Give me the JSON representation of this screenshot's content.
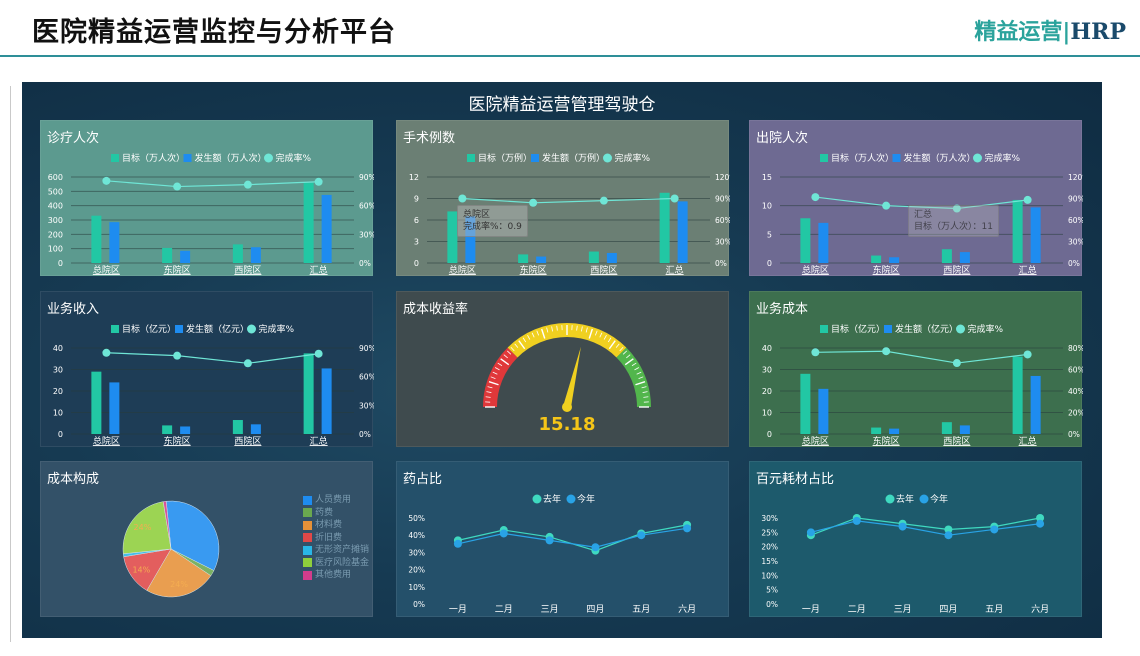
{
  "header": {
    "title": "医院精益运营监控与分析平台",
    "brand_main": "精益运营",
    "brand_sep": "|",
    "brand_hrp": "HRP"
  },
  "dashboard_title": "医院精益运营管理驾驶仓",
  "colors": {
    "target_bar": "#22c7a4",
    "actual_bar": "#1e8cf0",
    "rate_line": "#6fe6d6",
    "last_year": "#3fd9c0",
    "this_year": "#29a3e6"
  },
  "panels": {
    "visits": {
      "title": "诊疗人次",
      "legend": [
        "目标（万人次）",
        "发生额（万人次）",
        "完成率%"
      ]
    },
    "surgery": {
      "title": "手术例数",
      "legend": [
        "目标（万例）",
        "发生额（万例）",
        "完成率%"
      ],
      "tooltip": [
        "总院区",
        "完成率%：0.9"
      ]
    },
    "discharge": {
      "title": "出院人次",
      "legend": [
        "目标（万人次）",
        "发生额（万人次）",
        "完成率%"
      ],
      "tooltip": [
        "汇总",
        "目标（万人次）：11"
      ]
    },
    "revenue": {
      "title": "业务收入",
      "legend": [
        "目标（亿元）",
        "发生额（亿元）",
        "完成率%"
      ]
    },
    "cost_ratio": {
      "title": "成本收益率",
      "gauge_value": 15.18,
      "gauge_label": "15.18"
    },
    "biz_cost": {
      "title": "业务成本",
      "legend": [
        "目标（亿元）",
        "发生额（亿元）",
        "完成率%"
      ]
    },
    "cost_composition": {
      "title": "成本构成",
      "legend": [
        "人员费用",
        "药费",
        "材料费",
        "折旧费",
        "无形资产摊销",
        "医疗风险基金",
        "其他费用"
      ],
      "legend_colors": [
        "#1e8cf0",
        "#6aa84f",
        "#e69138",
        "#e04848",
        "#29b6e6",
        "#8fcf3c",
        "#d23c8c"
      ]
    },
    "drug_ratio": {
      "title": "药占比",
      "legend": [
        "去年",
        "今年"
      ]
    },
    "material_ratio": {
      "title": "百元耗材占比",
      "legend": [
        "去年",
        "今年"
      ]
    }
  },
  "chart_data": [
    {
      "id": "visits",
      "type": "bar",
      "categories": [
        "总院区",
        "东院区",
        "西院区",
        "汇总"
      ],
      "series": [
        {
          "name": "目标（万人次）",
          "values": [
            330,
            105,
            130,
            560
          ]
        },
        {
          "name": "发生额（万人次）",
          "values": [
            285,
            85,
            110,
            475
          ]
        },
        {
          "name": "完成率%",
          "type": "line",
          "axis": "right",
          "values": [
            86,
            80,
            82,
            85
          ]
        }
      ],
      "ylim": [
        0,
        600
      ],
      "yticks": [
        "0",
        "100",
        "200",
        "300",
        "400",
        "500",
        "600"
      ],
      "y2lim": [
        0,
        90
      ],
      "y2ticks": [
        "0%",
        "30%",
        "60%",
        "90%"
      ]
    },
    {
      "id": "surgery",
      "type": "bar",
      "categories": [
        "总院区",
        "东院区",
        "西院区",
        "汇总"
      ],
      "series": [
        {
          "name": "目标（万例）",
          "values": [
            7.2,
            1.2,
            1.6,
            9.8
          ]
        },
        {
          "name": "发生额（万例）",
          "values": [
            6.5,
            0.9,
            1.4,
            8.6
          ]
        },
        {
          "name": "完成率%",
          "type": "line",
          "axis": "right",
          "values": [
            90,
            84,
            87,
            90
          ]
        }
      ],
      "ylim": [
        0,
        12
      ],
      "yticks": [
        "0",
        "3",
        "6",
        "9",
        "12"
      ],
      "y2lim": [
        0,
        120
      ],
      "y2ticks": [
        "0%",
        "30%",
        "60%",
        "90%",
        "120%"
      ]
    },
    {
      "id": "discharge",
      "type": "bar",
      "categories": [
        "总院区",
        "东院区",
        "西院区",
        "汇总"
      ],
      "series": [
        {
          "name": "目标（万人次）",
          "values": [
            7.8,
            1.3,
            2.4,
            11
          ]
        },
        {
          "name": "发生额（万人次）",
          "values": [
            7.0,
            1.0,
            1.9,
            9.7
          ]
        },
        {
          "name": "完成率%",
          "type": "line",
          "axis": "right",
          "values": [
            92,
            80,
            76,
            88
          ]
        }
      ],
      "ylim": [
        0,
        15
      ],
      "yticks": [
        "0",
        "5",
        "10",
        "15"
      ],
      "y2lim": [
        0,
        120
      ],
      "y2ticks": [
        "0%",
        "30%",
        "60%",
        "90%",
        "120%"
      ]
    },
    {
      "id": "revenue",
      "type": "bar",
      "categories": [
        "总院区",
        "东院区",
        "西院区",
        "汇总"
      ],
      "series": [
        {
          "name": "目标（亿元）",
          "values": [
            29,
            4,
            6.5,
            37.5
          ]
        },
        {
          "name": "发生额（亿元）",
          "values": [
            24,
            3.5,
            4.5,
            30.5
          ]
        },
        {
          "name": "完成率%",
          "type": "line",
          "axis": "right",
          "values": [
            85,
            82,
            74,
            84
          ]
        }
      ],
      "ylim": [
        0,
        40
      ],
      "yticks": [
        "0",
        "10",
        "20",
        "30",
        "40"
      ],
      "y2lim": [
        0,
        90
      ],
      "y2ticks": [
        "0%",
        "30%",
        "60%",
        "90%"
      ]
    },
    {
      "id": "biz_cost",
      "type": "bar",
      "categories": [
        "总院区",
        "东院区",
        "西院区",
        "汇总"
      ],
      "series": [
        {
          "name": "目标（亿元）",
          "values": [
            28,
            3,
            5.5,
            36
          ]
        },
        {
          "name": "发生额（亿元）",
          "values": [
            21,
            2.5,
            4,
            27
          ]
        },
        {
          "name": "完成率%",
          "type": "line",
          "axis": "right",
          "values": [
            76,
            77,
            66,
            74
          ]
        }
      ],
      "ylim": [
        0,
        40
      ],
      "yticks": [
        "0",
        "10",
        "20",
        "30",
        "40"
      ],
      "y2lim": [
        0,
        80
      ],
      "y2ticks": [
        "0%",
        "20%",
        "40%",
        "60%",
        "80%"
      ]
    },
    {
      "id": "cost_composition",
      "type": "pie",
      "labels": [
        "人员费用",
        "药费",
        "材料费",
        "折旧费",
        "无形资产摊销",
        "医疗风险基金",
        "其他费用"
      ],
      "values": [
        34,
        2,
        24,
        14,
        1,
        24,
        1
      ],
      "slice_labels": [
        "",
        "",
        "24%",
        "14%",
        "",
        "24%",
        ""
      ]
    },
    {
      "id": "drug_ratio",
      "type": "line",
      "categories": [
        "一月",
        "二月",
        "三月",
        "四月",
        "五月",
        "六月"
      ],
      "series": [
        {
          "name": "去年",
          "values": [
            37,
            43,
            39,
            31,
            41,
            46
          ]
        },
        {
          "name": "今年",
          "values": [
            35,
            41,
            37,
            33,
            40,
            44
          ]
        }
      ],
      "ylim": [
        0,
        50
      ],
      "yticks": [
        "0%",
        "10%",
        "20%",
        "30%",
        "40%",
        "50%"
      ]
    },
    {
      "id": "material_ratio",
      "type": "line",
      "categories": [
        "一月",
        "二月",
        "三月",
        "四月",
        "五月",
        "六月"
      ],
      "series": [
        {
          "name": "去年",
          "values": [
            24,
            30,
            28,
            26,
            27,
            30
          ]
        },
        {
          "name": "今年",
          "values": [
            25,
            29,
            27,
            24,
            26,
            28
          ]
        }
      ],
      "ylim": [
        0,
        30
      ],
      "yticks": [
        "0%",
        "5%",
        "10%",
        "15%",
        "20%",
        "25%",
        "30%"
      ]
    }
  ]
}
